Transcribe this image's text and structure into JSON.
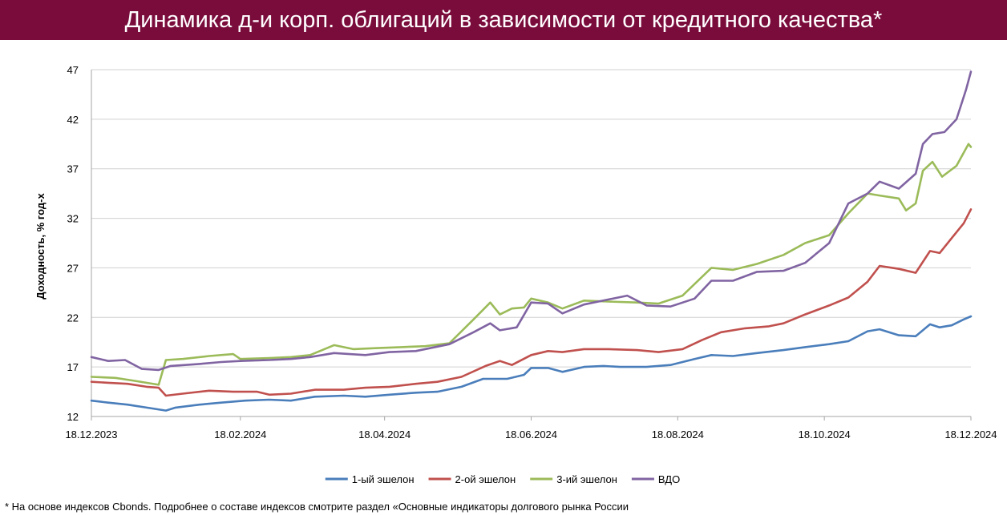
{
  "header": {
    "title": "Динамика д-и корп. облигаций в зависимости от кредитного качества*"
  },
  "footnote": "* На основе индексов Cbonds. Подробнее о составе индексов смотрите раздел «Основные индикаторы долгового рынка России",
  "chart_data": {
    "type": "line",
    "title": "Динамика д-и корп. облигаций в зависимости от кредитного качества*",
    "ylabel": "Доходность, % год-х",
    "xlabel": "",
    "ylim": [
      12,
      47
    ],
    "yticks": [
      12,
      17,
      22,
      27,
      32,
      37,
      42,
      47
    ],
    "x_start": "18.12.2023",
    "x_end": "18.12.2024",
    "xticks": [
      "18.12.2023",
      "18.02.2024",
      "18.04.2024",
      "18.06.2024",
      "18.08.2024",
      "18.10.2024",
      "18.12.2024"
    ],
    "grid": "horizontal",
    "legend": "bottom",
    "series": [
      {
        "name": "1-ый эшелон",
        "color": "#4a7ebb",
        "points": [
          [
            "18.12.2023",
            13.6
          ],
          [
            "25.12.2023",
            13.4
          ],
          [
            "02.01.2024",
            13.2
          ],
          [
            "10.01.2024",
            12.9
          ],
          [
            "18.01.2024",
            12.6
          ],
          [
            "22.01.2024",
            12.9
          ],
          [
            "01.02.2024",
            13.2
          ],
          [
            "10.02.2024",
            13.4
          ],
          [
            "20.02.2024",
            13.6
          ],
          [
            "01.03.2024",
            13.7
          ],
          [
            "10.03.2024",
            13.6
          ],
          [
            "20.03.2024",
            14.0
          ],
          [
            "01.04.2024",
            14.1
          ],
          [
            "10.04.2024",
            14.0
          ],
          [
            "20.04.2024",
            14.2
          ],
          [
            "01.05.2024",
            14.4
          ],
          [
            "10.05.2024",
            14.5
          ],
          [
            "20.05.2024",
            15.0
          ],
          [
            "29.05.2024",
            15.8
          ],
          [
            "08.06.2024",
            15.8
          ],
          [
            "15.06.2024",
            16.2
          ],
          [
            "18.06.2024",
            16.9
          ],
          [
            "25.06.2024",
            16.9
          ],
          [
            "01.07.2024",
            16.5
          ],
          [
            "10.07.2024",
            17.0
          ],
          [
            "18.07.2024",
            17.1
          ],
          [
            "25.07.2024",
            17.0
          ],
          [
            "05.08.2024",
            17.0
          ],
          [
            "15.08.2024",
            17.2
          ],
          [
            "25.08.2024",
            17.8
          ],
          [
            "01.09.2024",
            18.2
          ],
          [
            "10.09.2024",
            18.1
          ],
          [
            "20.09.2024",
            18.4
          ],
          [
            "01.10.2024",
            18.7
          ],
          [
            "10.10.2024",
            19.0
          ],
          [
            "20.10.2024",
            19.3
          ],
          [
            "28.10.2024",
            19.6
          ],
          [
            "05.11.2024",
            20.6
          ],
          [
            "10.11.2024",
            20.8
          ],
          [
            "18.11.2024",
            20.2
          ],
          [
            "25.11.2024",
            20.1
          ],
          [
            "01.12.2024",
            21.3
          ],
          [
            "05.12.2024",
            21.0
          ],
          [
            "10.12.2024",
            21.2
          ],
          [
            "15.12.2024",
            21.8
          ],
          [
            "18.12.2024",
            22.1
          ]
        ]
      },
      {
        "name": "2-ой эшелон",
        "color": "#c0504d",
        "points": [
          [
            "18.12.2023",
            15.5
          ],
          [
            "25.12.2023",
            15.4
          ],
          [
            "02.01.2024",
            15.3
          ],
          [
            "10.01.2024",
            15.0
          ],
          [
            "15.01.2024",
            14.9
          ],
          [
            "18.01.2024",
            14.1
          ],
          [
            "25.01.2024",
            14.3
          ],
          [
            "05.02.2024",
            14.6
          ],
          [
            "15.02.2024",
            14.5
          ],
          [
            "25.02.2024",
            14.5
          ],
          [
            "01.03.2024",
            14.2
          ],
          [
            "10.03.2024",
            14.3
          ],
          [
            "20.03.2024",
            14.7
          ],
          [
            "01.04.2024",
            14.7
          ],
          [
            "10.04.2024",
            14.9
          ],
          [
            "20.04.2024",
            15.0
          ],
          [
            "01.05.2024",
            15.3
          ],
          [
            "10.05.2024",
            15.5
          ],
          [
            "20.05.2024",
            16.0
          ],
          [
            "30.05.2024",
            17.1
          ],
          [
            "05.06.2024",
            17.6
          ],
          [
            "10.06.2024",
            17.2
          ],
          [
            "18.06.2024",
            18.2
          ],
          [
            "25.06.2024",
            18.6
          ],
          [
            "01.07.2024",
            18.5
          ],
          [
            "10.07.2024",
            18.8
          ],
          [
            "20.07.2024",
            18.8
          ],
          [
            "01.08.2024",
            18.7
          ],
          [
            "10.08.2024",
            18.5
          ],
          [
            "20.08.2024",
            18.8
          ],
          [
            "28.08.2024",
            19.7
          ],
          [
            "05.09.2024",
            20.5
          ],
          [
            "15.09.2024",
            20.9
          ],
          [
            "25.09.2024",
            21.1
          ],
          [
            "01.10.2024",
            21.4
          ],
          [
            "10.10.2024",
            22.3
          ],
          [
            "20.10.2024",
            23.2
          ],
          [
            "28.10.2024",
            24.0
          ],
          [
            "05.11.2024",
            25.6
          ],
          [
            "10.11.2024",
            27.2
          ],
          [
            "18.11.2024",
            26.9
          ],
          [
            "25.11.2024",
            26.5
          ],
          [
            "01.12.2024",
            28.7
          ],
          [
            "05.12.2024",
            28.5
          ],
          [
            "10.12.2024",
            30.0
          ],
          [
            "15.12.2024",
            31.5
          ],
          [
            "18.12.2024",
            32.9
          ]
        ]
      },
      {
        "name": "3-ий эшелон",
        "color": "#9bbb59",
        "points": [
          [
            "18.12.2023",
            16.0
          ],
          [
            "28.12.2023",
            15.9
          ],
          [
            "05.01.2024",
            15.6
          ],
          [
            "15.01.2024",
            15.2
          ],
          [
            "18.01.2024",
            17.7
          ],
          [
            "25.01.2024",
            17.8
          ],
          [
            "05.02.2024",
            18.1
          ],
          [
            "15.02.2024",
            18.3
          ],
          [
            "18.02.2024",
            17.8
          ],
          [
            "01.03.2024",
            17.9
          ],
          [
            "10.03.2024",
            18.0
          ],
          [
            "18.03.2024",
            18.2
          ],
          [
            "28.03.2024",
            19.2
          ],
          [
            "05.04.2024",
            18.8
          ],
          [
            "15.04.2024",
            18.9
          ],
          [
            "25.04.2024",
            19.0
          ],
          [
            "05.05.2024",
            19.1
          ],
          [
            "15.05.2024",
            19.4
          ],
          [
            "25.05.2024",
            21.8
          ],
          [
            "01.06.2024",
            23.5
          ],
          [
            "05.06.2024",
            22.3
          ],
          [
            "10.06.2024",
            22.9
          ],
          [
            "15.06.2024",
            23.0
          ],
          [
            "18.06.2024",
            23.9
          ],
          [
            "25.06.2024",
            23.5
          ],
          [
            "01.07.2024",
            22.9
          ],
          [
            "10.07.2024",
            23.7
          ],
          [
            "20.07.2024",
            23.6
          ],
          [
            "01.08.2024",
            23.5
          ],
          [
            "10.08.2024",
            23.4
          ],
          [
            "20.08.2024",
            24.2
          ],
          [
            "01.09.2024",
            27.0
          ],
          [
            "10.09.2024",
            26.8
          ],
          [
            "20.09.2024",
            27.4
          ],
          [
            "01.10.2024",
            28.3
          ],
          [
            "10.10.2024",
            29.5
          ],
          [
            "20.10.2024",
            30.3
          ],
          [
            "28.10.2024",
            32.5
          ],
          [
            "05.11.2024",
            34.5
          ],
          [
            "10.11.2024",
            34.3
          ],
          [
            "18.11.2024",
            34.0
          ],
          [
            "21.11.2024",
            32.8
          ],
          [
            "25.11.2024",
            33.5
          ],
          [
            "28.11.2024",
            36.8
          ],
          [
            "02.12.2024",
            37.7
          ],
          [
            "06.12.2024",
            36.2
          ],
          [
            "12.12.2024",
            37.3
          ],
          [
            "17.12.2024",
            39.5
          ],
          [
            "18.12.2024",
            39.2
          ]
        ]
      },
      {
        "name": "ВДО",
        "color": "#8064a2",
        "points": [
          [
            "18.12.2023",
            18.0
          ],
          [
            "25.12.2023",
            17.6
          ],
          [
            "01.01.2024",
            17.7
          ],
          [
            "08.01.2024",
            16.8
          ],
          [
            "15.01.2024",
            16.7
          ],
          [
            "20.01.2024",
            17.1
          ],
          [
            "01.02.2024",
            17.3
          ],
          [
            "10.02.2024",
            17.5
          ],
          [
            "18.02.2024",
            17.6
          ],
          [
            "01.03.2024",
            17.7
          ],
          [
            "10.03.2024",
            17.8
          ],
          [
            "18.03.2024",
            18.0
          ],
          [
            "28.03.2024",
            18.4
          ],
          [
            "10.04.2024",
            18.2
          ],
          [
            "20.04.2024",
            18.5
          ],
          [
            "01.05.2024",
            18.6
          ],
          [
            "15.05.2024",
            19.3
          ],
          [
            "25.05.2024",
            20.5
          ],
          [
            "01.06.2024",
            21.4
          ],
          [
            "05.06.2024",
            20.7
          ],
          [
            "12.06.2024",
            21.0
          ],
          [
            "18.06.2024",
            23.5
          ],
          [
            "25.06.2024",
            23.4
          ],
          [
            "01.07.2024",
            22.4
          ],
          [
            "10.07.2024",
            23.3
          ],
          [
            "20.07.2024",
            23.8
          ],
          [
            "28.07.2024",
            24.2
          ],
          [
            "05.08.2024",
            23.2
          ],
          [
            "15.08.2024",
            23.1
          ],
          [
            "25.08.2024",
            23.9
          ],
          [
            "01.09.2024",
            25.7
          ],
          [
            "10.09.2024",
            25.7
          ],
          [
            "20.09.2024",
            26.6
          ],
          [
            "01.10.2024",
            26.7
          ],
          [
            "10.10.2024",
            27.5
          ],
          [
            "20.10.2024",
            29.5
          ],
          [
            "28.10.2024",
            33.5
          ],
          [
            "05.11.2024",
            34.5
          ],
          [
            "10.11.2024",
            35.7
          ],
          [
            "18.11.2024",
            35.0
          ],
          [
            "25.11.2024",
            36.5
          ],
          [
            "28.11.2024",
            39.5
          ],
          [
            "02.12.2024",
            40.5
          ],
          [
            "07.12.2024",
            40.7
          ],
          [
            "12.12.2024",
            42.0
          ],
          [
            "16.12.2024",
            45.0
          ],
          [
            "18.12.2024",
            46.8
          ]
        ]
      }
    ]
  }
}
